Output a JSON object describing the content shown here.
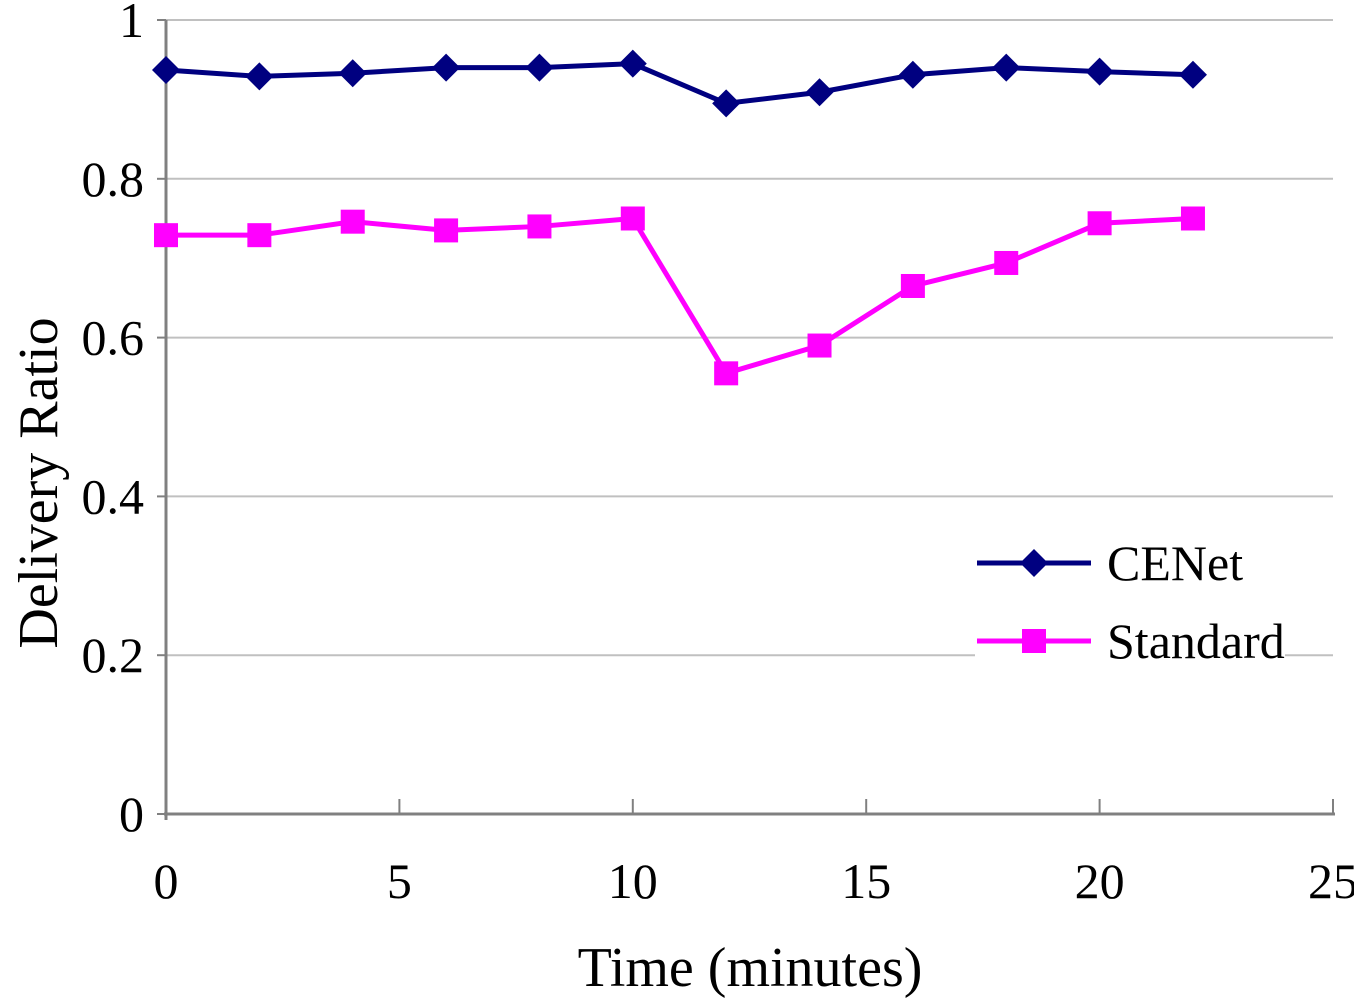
{
  "chart_data": {
    "type": "line",
    "title": "",
    "xlabel": "Time (minutes)",
    "ylabel": "Delivery Ratio",
    "x": [
      0,
      2,
      4,
      6,
      8,
      10,
      12,
      14,
      16,
      18,
      20,
      22
    ],
    "series": [
      {
        "name": "CENet",
        "color": "#000080",
        "marker": "diamond",
        "values": [
          0.937,
          0.929,
          0.933,
          0.94,
          0.94,
          0.945,
          0.895,
          0.909,
          0.931,
          0.94,
          0.935,
          0.931
        ]
      },
      {
        "name": "Standard",
        "color": "#ff00ff",
        "marker": "square",
        "values": [
          0.729,
          0.729,
          0.746,
          0.735,
          0.74,
          0.75,
          0.555,
          0.59,
          0.665,
          0.694,
          0.744,
          0.75
        ]
      }
    ],
    "xticks": [
      0,
      5,
      10,
      15,
      20,
      25
    ],
    "yticks": [
      0,
      0.2,
      0.4,
      0.6,
      0.8,
      1
    ],
    "xlim": [
      0,
      25
    ],
    "ylim": [
      0,
      1
    ],
    "grid": true,
    "legend_position": "right-middle",
    "grid_color": "#c0c0c0",
    "axis_color": "#808080"
  }
}
